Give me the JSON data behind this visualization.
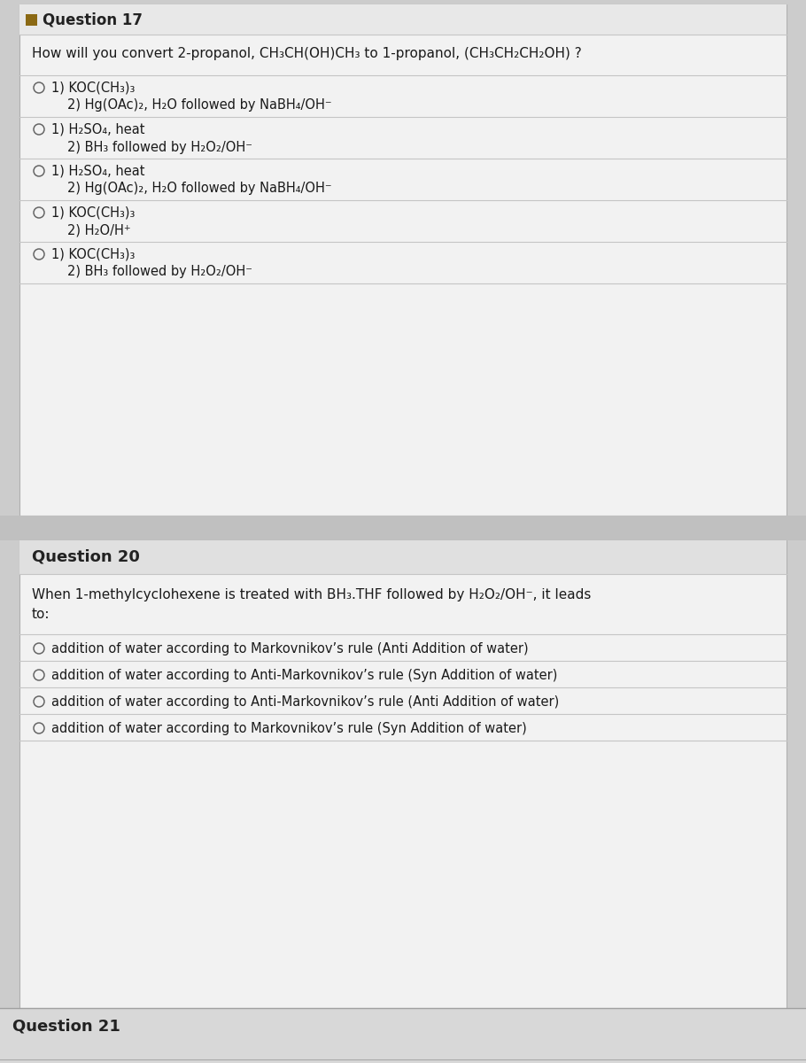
{
  "bg_outer": "#cccccc",
  "bg_box": "#f2f2f2",
  "bg_header17": "#e8e8e8",
  "bg_header20": "#e0e0e0",
  "bg_gap": "#c0c0c0",
  "bg_q21": "#d8d8d8",
  "bullet_color": "#8B6914",
  "q17_title": "Question 17",
  "q17_question": "How will you convert 2-propanol, CH₃CH(OH)CH₃ to 1-propanol, (CH₃CH₂CH₂OH) ?",
  "q17_options": [
    [
      "1) KOC(CH₃)₃",
      "2) Hg(OAc)₂, H₂O followed by NaBH₄/OH⁻"
    ],
    [
      "1) H₂SO₄, heat",
      "2) BH₃ followed by H₂O₂/OH⁻"
    ],
    [
      "1) H₂SO₄, heat",
      "2) Hg(OAc)₂, H₂O followed by NaBH₄/OH⁻"
    ],
    [
      "1) KOC(CH₃)₃",
      "2) H₂O/H⁺"
    ],
    [
      "1) KOC(CH₃)₃",
      "2) BH₃ followed by H₂O₂/OH⁻"
    ]
  ],
  "q20_title": "Question 20",
  "q20_question": "When 1-methylcyclohexene is treated with BH₃.THF followed by H₂O₂/OH⁻, it leads\nto:",
  "q20_options": [
    "addition of water according to Markovnikov’s rule (Anti Addition of water)",
    "addition of water according to Anti-Markovnikov’s rule (Syn Addition of water)",
    "addition of water according to Anti-Markovnikov’s rule (Anti Addition of water)",
    "addition of water according to Markovnikov’s rule (Syn Addition of water)"
  ],
  "q21_title": "Question 21",
  "title_fontsize": 12,
  "option_fontsize": 10.5,
  "question_fontsize": 11,
  "text_color": "#1a1a1a",
  "header_text_color": "#222222",
  "line_color": "#c5c5c5",
  "circle_color": "#666666",
  "edge_color": "#b0b0b0"
}
